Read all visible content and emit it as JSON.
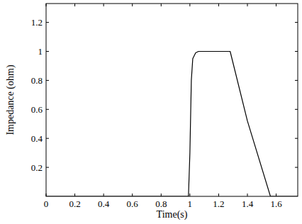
{
  "chart_data": {
    "type": "line",
    "x_label": "Time(s)",
    "y_label": "Impedance (ohm)",
    "x": [
      0,
      0.99,
      1.0,
      1.01,
      1.02,
      1.04,
      1.06,
      1.28,
      1.4,
      1.56,
      1.75
    ],
    "series": [
      {
        "name": "Impedance",
        "color": "#000000",
        "line_style": "solid",
        "values": [
          0,
          0,
          0.3,
          0.8,
          0.95,
          0.99,
          1.0,
          1.0,
          0.52,
          0,
          0
        ]
      }
    ],
    "xlim": [
      0,
      1.75
    ],
    "ylim": [
      0,
      1.33
    ],
    "xticks": [
      0,
      0.2,
      0.4,
      0.6,
      0.8,
      1,
      1.2,
      1.4,
      1.6
    ],
    "yticks": [
      0.2,
      0.4,
      0.6,
      0.8,
      1,
      1.2
    ],
    "grid": false
  }
}
